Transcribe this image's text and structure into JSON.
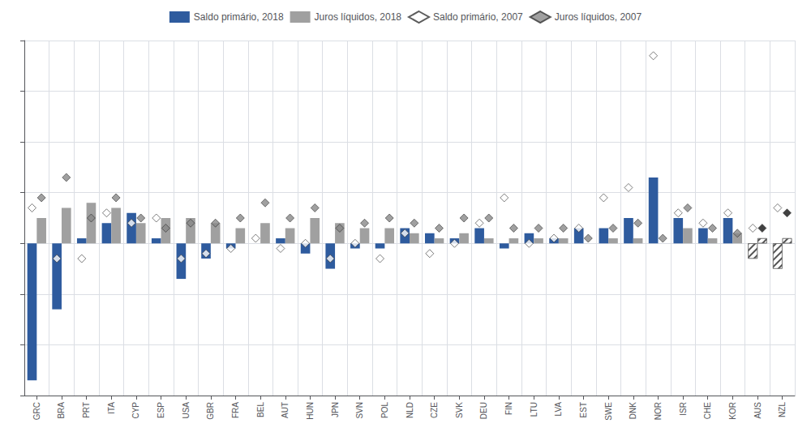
{
  "chart_data": {
    "type": "bar",
    "categories": [
      "GRC",
      "BRA",
      "PRT",
      "ITA",
      "CYP",
      "ESP",
      "USA",
      "GBR",
      "FRA",
      "BEL",
      "AUT",
      "HUN",
      "JPN",
      "SVN",
      "POL",
      "NLD",
      "CZE",
      "SVK",
      "DEU",
      "FIN",
      "LTU",
      "LVA",
      "EST",
      "SWE",
      "DNK",
      "NOR",
      "ISR",
      "CHE",
      "KOR",
      "AUS",
      "NZL"
    ],
    "series": [
      {
        "name": "Saldo primário, 2018",
        "type": "bar",
        "color": "#2E5B9E",
        "colors": [
          "#2E5B9E",
          "#2E5B9E",
          "#2E5B9E",
          "#2E5B9E",
          "#2E5B9E",
          "#2E5B9E",
          "#2E5B9E",
          "#2E5B9E",
          "#2E5B9E",
          "#2E5B9E",
          "#2E5B9E",
          "#2E5B9E",
          "#2E5B9E",
          "#2E5B9E",
          "#2E5B9E",
          "#2E5B9E",
          "#2E5B9E",
          "#2E5B9E",
          "#2E5B9E",
          "#2E5B9E",
          "#2E5B9E",
          "#2E5B9E",
          "#2E5B9E",
          "#2E5B9E",
          "#2E5B9E",
          "#2E5B9E",
          "#2E5B9E",
          "#2E5B9E",
          "#2E5B9E",
          "#FFFFFF",
          "#FFFFFF"
        ],
        "values": [
          -13.5,
          -6.5,
          0.5,
          2.0,
          3.0,
          0.5,
          -3.5,
          -1.5,
          -0.5,
          0.0,
          0.5,
          -1.0,
          -2.5,
          -0.5,
          -0.5,
          1.5,
          1.0,
          0.5,
          1.5,
          -0.5,
          1.0,
          0.5,
          1.5,
          1.5,
          2.5,
          6.5,
          2.5,
          1.5,
          2.5,
          -1.5,
          -2.5
        ]
      },
      {
        "name": "Juros líquidos, 2018",
        "type": "bar",
        "color": "#A0A0A0",
        "colors": [
          "#A0A0A0",
          "#A0A0A0",
          "#A0A0A0",
          "#A0A0A0",
          "#A0A0A0",
          "#A0A0A0",
          "#A0A0A0",
          "#A0A0A0",
          "#A0A0A0",
          "#A0A0A0",
          "#A0A0A0",
          "#A0A0A0",
          "#A0A0A0",
          "#A0A0A0",
          "#A0A0A0",
          "#A0A0A0",
          "#A0A0A0",
          "#A0A0A0",
          "#A0A0A0",
          "#A0A0A0",
          "#A0A0A0",
          "#A0A0A0",
          "#A0A0A0",
          "#A0A0A0",
          "#A0A0A0",
          "#A0A0A0",
          "#A0A0A0",
          "#A0A0A0",
          "#A0A0A0",
          "#FFFFFF",
          "#FFFFFF"
        ],
        "values": [
          2.5,
          3.5,
          4.0,
          3.5,
          2.0,
          2.5,
          2.5,
          2.0,
          1.5,
          2.0,
          1.5,
          2.5,
          2.0,
          1.5,
          1.5,
          1.0,
          0.5,
          1.0,
          0.5,
          0.5,
          0.5,
          0.5,
          0.0,
          0.5,
          0.5,
          0.0,
          1.5,
          0.5,
          1.0,
          0.5,
          0.5
        ]
      },
      {
        "name": "Saldo primário, 2007",
        "type": "scatter",
        "marker": "diamond",
        "color": "#FFFFFF",
        "values": [
          3.5,
          -1.5,
          -1.5,
          3.0,
          2.0,
          2.5,
          -1.5,
          -1.0,
          -0.5,
          0.5,
          -0.5,
          0.0,
          -1.5,
          0.0,
          -1.5,
          1.0,
          -1.0,
          0.0,
          2.0,
          4.5,
          0.0,
          0.5,
          1.5,
          4.5,
          5.5,
          18.5,
          3.0,
          2.0,
          3.0,
          1.5,
          3.5
        ]
      },
      {
        "name": "Juros líquidos, 2007",
        "type": "scatter",
        "marker": "diamond",
        "color": "#888888",
        "colors": [
          "#888888",
          "#888888",
          "#888888",
          "#888888",
          "#888888",
          "#888888",
          "#888888",
          "#888888",
          "#888888",
          "#888888",
          "#888888",
          "#888888",
          "#888888",
          "#888888",
          "#888888",
          "#888888",
          "#888888",
          "#888888",
          "#888888",
          "#888888",
          "#888888",
          "#888888",
          "#888888",
          "#888888",
          "#888888",
          "#888888",
          "#888888",
          "#888888",
          "#888888",
          "#111111",
          "#111111"
        ],
        "values": [
          4.5,
          6.5,
          2.5,
          4.5,
          2.5,
          1.5,
          2.0,
          2.0,
          2.5,
          4.0,
          2.5,
          3.5,
          1.5,
          2.0,
          2.5,
          2.0,
          1.5,
          2.5,
          2.5,
          1.5,
          1.5,
          1.5,
          0.5,
          1.5,
          2.0,
          0.5,
          3.5,
          1.5,
          1.0,
          1.5,
          3.0
        ]
      }
    ],
    "ylim": [
      -15,
      20
    ],
    "yticks": [
      -15,
      -10,
      -5,
      0,
      5,
      10,
      15,
      20
    ],
    "grid": true,
    "legend": "top",
    "tick_labels": "x"
  }
}
